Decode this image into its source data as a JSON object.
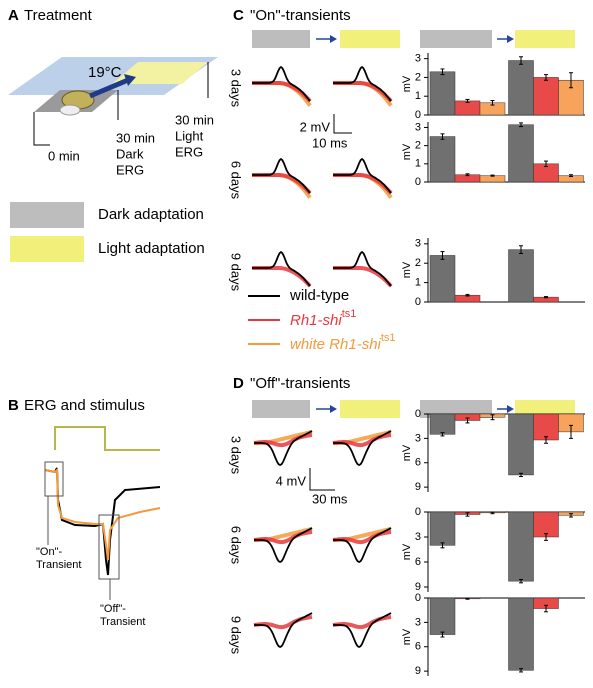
{
  "panel_a": {
    "letter": "A",
    "title": "Treatment",
    "temperature": "19°C",
    "timeline": [
      [
        "0 min"
      ],
      [
        "30 min",
        "Dark",
        "ERG"
      ],
      [
        "30 min",
        "Light",
        "ERG"
      ]
    ]
  },
  "adaptation": [
    "Dark adaptation",
    "Light adaptation"
  ],
  "panel_b": {
    "letter": "B",
    "title": "ERG and stimulus",
    "on_label": [
      "\"On\"-",
      "Transient"
    ],
    "off_label": [
      "\"Off\"-",
      "Transient"
    ]
  },
  "panel_c": {
    "letter": "C",
    "title": "\"On\"-transients",
    "rows": [
      "3 days",
      "6 days",
      "9 days"
    ],
    "scale": [
      "2 mV",
      "10 ms"
    ]
  },
  "panel_d": {
    "letter": "D",
    "title": "\"Off\"-transients",
    "rows": [
      "3 days",
      "6 days",
      "9 days"
    ],
    "scale": [
      "4 mV",
      "30 ms"
    ]
  },
  "legend": [
    {
      "label": "wild-type",
      "color": "#000000"
    },
    {
      "label": "Rh1-shi",
      "superscript": "ts1",
      "color": "#e8383d"
    },
    {
      "label": "white Rh1-shi",
      "superscript": "ts1",
      "color": "#f39a3c"
    }
  ],
  "chart_data": [
    {
      "type": "bar",
      "ylabel": "mV",
      "categories": [
        null,
        null
      ],
      "ylim": [
        0,
        3.3
      ],
      "yticks": [
        0,
        1,
        2,
        3
      ],
      "series": [
        {
          "color": "#707070",
          "values": [
            2.3,
            2.9
          ],
          "errors": [
            0.15,
            0.2
          ]
        },
        {
          "color": "#e84a4a",
          "values": [
            0.75,
            2.0
          ],
          "errors": [
            0.08,
            0.15
          ]
        },
        {
          "color": "#f7a35c",
          "values": [
            0.65,
            1.85
          ],
          "errors": [
            0.12,
            0.4
          ]
        }
      ]
    },
    {
      "type": "bar",
      "ylabel": "mV",
      "categories": [
        null,
        null
      ],
      "ylim": [
        0,
        3.3
      ],
      "yticks": [
        0,
        1,
        2,
        3
      ],
      "series": [
        {
          "color": "#707070",
          "values": [
            2.5,
            3.15
          ],
          "errors": [
            0.15,
            0.1
          ]
        },
        {
          "color": "#e84a4a",
          "values": [
            0.4,
            1.0
          ],
          "errors": [
            0.05,
            0.15
          ]
        },
        {
          "color": "#f7a35c",
          "values": [
            0.35,
            0.35
          ],
          "errors": [
            0.03,
            0.05
          ]
        }
      ]
    },
    {
      "type": "bar",
      "ylabel": "mV",
      "categories": [
        null,
        null
      ],
      "ylim": [
        0,
        3.3
      ],
      "yticks": [
        0,
        1,
        2,
        3
      ],
      "series": [
        {
          "color": "#707070",
          "values": [
            2.4,
            2.7
          ],
          "errors": [
            0.2,
            0.2
          ]
        },
        {
          "color": "#e84a4a",
          "values": [
            0.35,
            0.25
          ],
          "errors": [
            0.04,
            0.03
          ]
        }
      ]
    },
    {
      "type": "bar",
      "ylabel": "mV",
      "y_inverted": true,
      "categories": [
        null,
        null
      ],
      "ylim": [
        0,
        9.6
      ],
      "yticks": [
        0,
        3,
        6,
        9
      ],
      "series": [
        {
          "color": "#707070",
          "values": [
            2.5,
            7.5
          ],
          "errors": [
            0.2,
            0.2
          ]
        },
        {
          "color": "#e84a4a",
          "values": [
            0.8,
            3.2
          ],
          "errors": [
            0.3,
            0.4
          ]
        },
        {
          "color": "#f7a35c",
          "values": [
            0.4,
            2.2
          ],
          "errors": [
            0.3,
            0.8
          ]
        }
      ]
    },
    {
      "type": "bar",
      "ylabel": "mV",
      "y_inverted": true,
      "categories": [
        null,
        null
      ],
      "ylim": [
        0,
        9.6
      ],
      "yticks": [
        0,
        3,
        6,
        9
      ],
      "series": [
        {
          "color": "#707070",
          "values": [
            4.0,
            8.3
          ],
          "errors": [
            0.3,
            0.2
          ]
        },
        {
          "color": "#e84a4a",
          "values": [
            0.3,
            3.0
          ],
          "errors": [
            0.2,
            0.4
          ]
        },
        {
          "color": "#f7a35c",
          "values": [
            0.1,
            0.4
          ],
          "errors": [
            0.1,
            0.2
          ]
        }
      ]
    },
    {
      "type": "bar",
      "ylabel": "mV",
      "y_inverted": true,
      "categories": [
        null,
        null
      ],
      "ylim": [
        0,
        9.6
      ],
      "yticks": [
        0,
        3,
        6,
        9
      ],
      "series": [
        {
          "color": "#707070",
          "values": [
            4.5,
            8.9
          ],
          "errors": [
            0.3,
            0.2
          ]
        },
        {
          "color": "#e84a4a",
          "values": [
            0.1,
            1.3
          ],
          "errors": [
            0.05,
            0.4
          ]
        }
      ]
    }
  ]
}
